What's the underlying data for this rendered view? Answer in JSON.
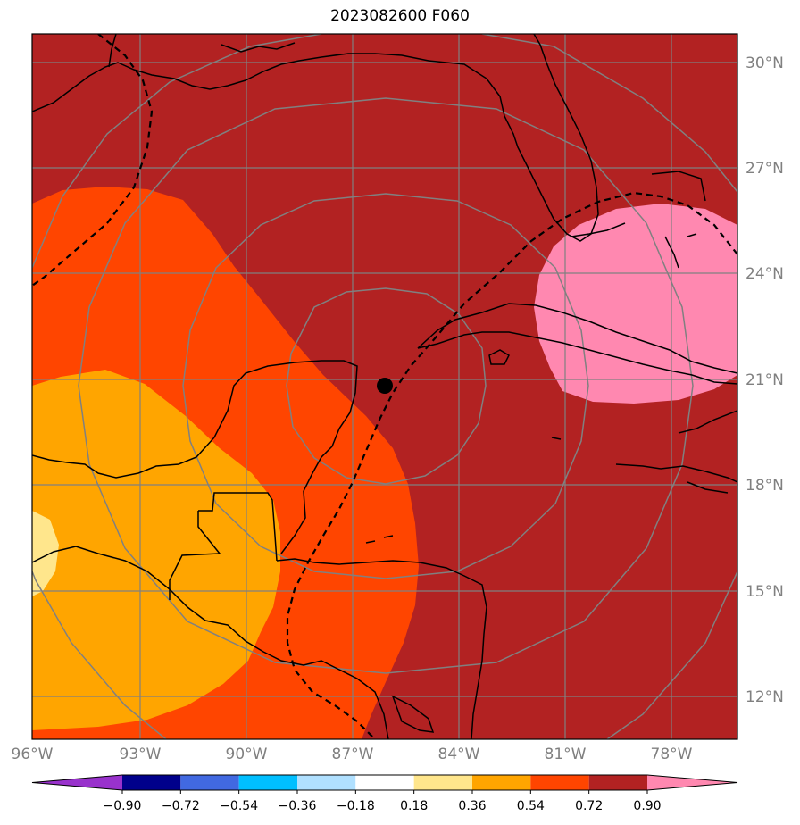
{
  "title": "2023082600 F060",
  "map": {
    "lon_ticks": [
      "96°W",
      "93°W",
      "90°W",
      "87°W",
      "84°W",
      "81°W",
      "78°W"
    ],
    "lat_ticks": [
      "30°N",
      "27°N",
      "24°N",
      "21°N",
      "18°N",
      "15°N",
      "12°N"
    ],
    "extent": {
      "lon": [
        -96,
        -76
      ],
      "lat": [
        10.8,
        31
      ]
    },
    "center_marker": {
      "lon": -86,
      "lat": 20.8
    },
    "range_rings": true,
    "gridlines": true
  },
  "colorbar": {
    "labels": [
      "−0.90",
      "−0.72",
      "−0.54",
      "−0.36",
      "−0.18",
      "0.18",
      "0.36",
      "0.54",
      "0.72",
      "0.90"
    ],
    "colors": [
      "#9932cc",
      "#00008b",
      "#4169e1",
      "#00bfff",
      "#b0e0ff",
      "#ffffff",
      "#ffe68c",
      "#ffa500",
      "#ff4500",
      "#b22222",
      "#ff88b0"
    ],
    "extend": "both"
  },
  "colors": {
    "background_fill": "#b22222",
    "fill_054_072": "#ff4500",
    "fill_036_054": "#ffa500",
    "fill_018_036": "#ffe68c",
    "fill_above_090": "#ff88b0",
    "grid": "#808080",
    "coastline": "#000000"
  }
}
